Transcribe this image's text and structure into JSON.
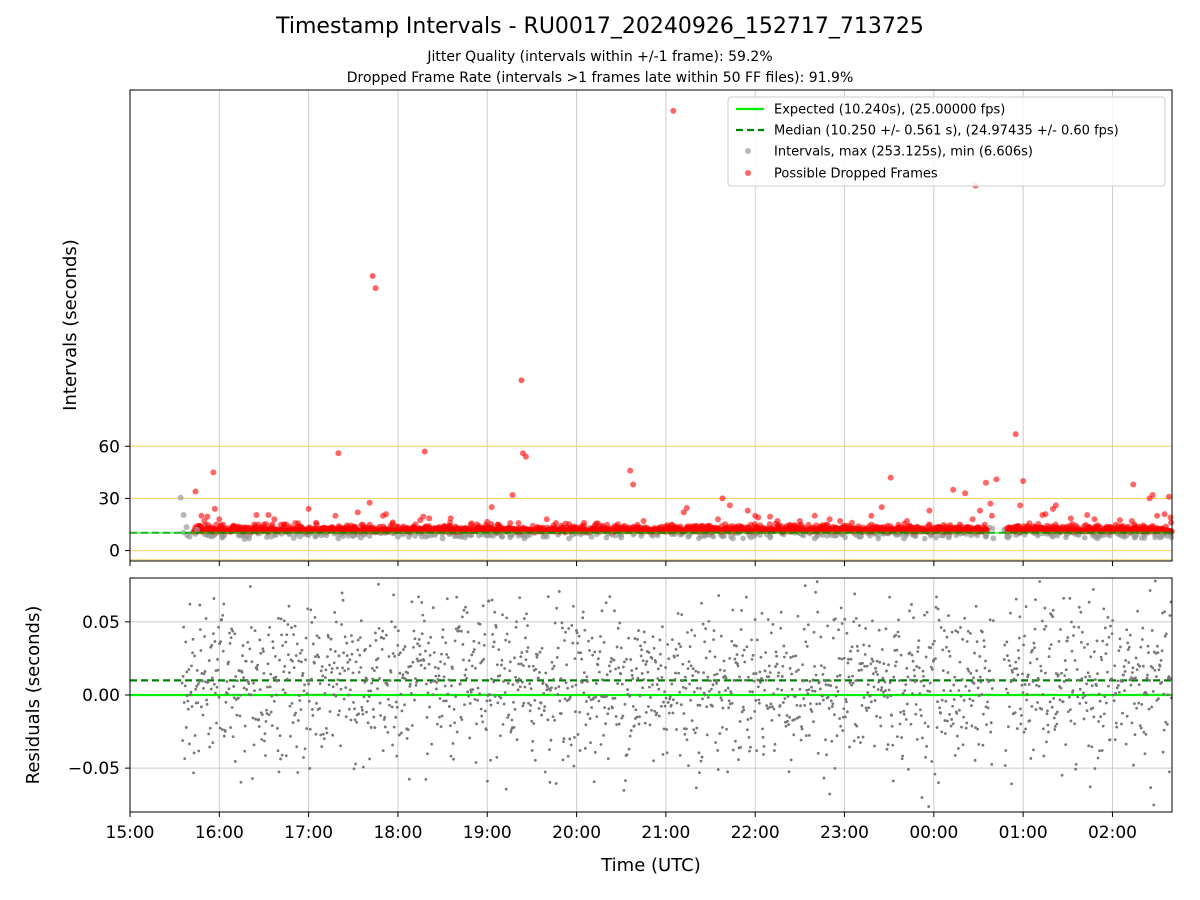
{
  "figure": {
    "title": "Timestamp Intervals - RU0017_20240926_152717_713725",
    "subtitle1": "Jitter Quality (intervals within +/-1 frame): 59.2%",
    "subtitle2": "Dropped Frame Rate (intervals >1 frames late within 50 FF files): 91.9%"
  },
  "colors": {
    "expected": "#00ee00",
    "median": "#008000",
    "intervals": "#999999",
    "dropped": "#ff0000",
    "residual_points": "#777777",
    "threshold_lines": "#f5d060",
    "grid": "#cccccc"
  },
  "chart_data": [
    {
      "type": "scatter",
      "panel": "intervals",
      "ylabel": "Intervals (seconds)",
      "yticks": [
        0,
        30,
        60
      ],
      "ylim": [
        -6,
        265
      ],
      "xlim": [
        "15:00",
        "02:40"
      ],
      "threshold_lines": [
        0,
        30,
        60
      ],
      "grid": "vertical",
      "legend_position": "top-right",
      "legend": [
        "Expected (10.240s), (25.00000 fps)",
        "Median (10.250 +/- 0.561 s), (24.97435 +/- 0.60 fps)",
        "Intervals, max (253.125s), min (6.606s)",
        "Possible Dropped Frames"
      ],
      "expected_interval": 10.24,
      "median_interval": 10.25,
      "series": [
        {
          "name": "Intervals, max (253.125s), min (6.606s)",
          "points": [
            [
              "15:34",
              30.5
            ],
            [
              "15:36",
              20.5
            ],
            [
              "15:38",
              13.5
            ],
            [
              "15:40",
              8.0
            ],
            [
              "15:45",
              12.0
            ],
            [
              "15:52",
              9.0
            ],
            [
              "16:02",
              7.5
            ],
            [
              "16:20",
              7.0
            ],
            [
              "16:35",
              8.0
            ],
            [
              "16:50",
              7.2
            ],
            [
              "17:05",
              8.5
            ],
            [
              "17:20",
              7.0
            ],
            [
              "17:35",
              7.5
            ],
            [
              "18:00",
              8.0
            ],
            [
              "18:30",
              7.0
            ],
            [
              "18:45",
              7.5
            ],
            [
              "19:10",
              8.0
            ],
            [
              "19:25",
              7.0
            ],
            [
              "19:40",
              8.0
            ],
            [
              "19:55",
              7.0
            ],
            [
              "20:10",
              8.0
            ],
            [
              "20:30",
              7.5
            ],
            [
              "21:15",
              8.0
            ],
            [
              "21:45",
              7.0
            ],
            [
              "22:10",
              7.5
            ],
            [
              "22:40",
              7.0
            ],
            [
              "23:10",
              8.0
            ],
            [
              "23:40",
              7.0
            ],
            [
              "00:10",
              7.5
            ],
            [
              "00:35",
              8.0
            ],
            [
              "00:40",
              7.0
            ],
            [
              "00:50",
              7.5
            ],
            [
              "01:20",
              8.0
            ],
            [
              "01:50",
              7.0
            ],
            [
              "02:15",
              7.5
            ]
          ]
        },
        {
          "name": "Possible Dropped Frames",
          "points": [
            [
              "15:44",
              34.0
            ],
            [
              "15:48",
              20.0
            ],
            [
              "15:50",
              17.0
            ],
            [
              "15:52",
              19.5
            ],
            [
              "15:56",
              45.0
            ],
            [
              "15:57",
              24.0
            ],
            [
              "15:58",
              15.0
            ],
            [
              "16:00",
              18.0
            ],
            [
              "16:25",
              20.5
            ],
            [
              "16:30",
              15.0
            ],
            [
              "16:33",
              20.5
            ],
            [
              "16:37",
              18.0
            ],
            [
              "16:45",
              15.0
            ],
            [
              "17:00",
              24.0
            ],
            [
              "17:05",
              16.0
            ],
            [
              "17:18",
              20.0
            ],
            [
              "17:20",
              56.0
            ],
            [
              "17:33",
              22.0
            ],
            [
              "17:41",
              27.5
            ],
            [
              "17:43",
              158.0
            ],
            [
              "17:45",
              151.0
            ],
            [
              "17:50",
              20.0
            ],
            [
              "17:52",
              21.0
            ],
            [
              "18:15",
              17.5
            ],
            [
              "18:17",
              19.5
            ],
            [
              "18:18",
              57.0
            ],
            [
              "18:21",
              18.5
            ],
            [
              "18:35",
              16.0
            ],
            [
              "19:00",
              16.5
            ],
            [
              "19:03",
              25.0
            ],
            [
              "19:17",
              32.0
            ],
            [
              "19:23",
              98.0
            ],
            [
              "19:24",
              56.0
            ],
            [
              "19:26",
              54.0
            ],
            [
              "19:40",
              18.0
            ],
            [
              "20:05",
              16.0
            ],
            [
              "20:36",
              46.0
            ],
            [
              "20:38",
              38.0
            ],
            [
              "20:45",
              17.0
            ],
            [
              "21:05",
              253.0
            ],
            [
              "21:12",
              22.0
            ],
            [
              "21:14",
              24.5
            ],
            [
              "21:35",
              18.0
            ],
            [
              "21:38",
              30.0
            ],
            [
              "21:43",
              26.0
            ],
            [
              "21:55",
              23.0
            ],
            [
              "22:00",
              20.0
            ],
            [
              "22:02",
              19.0
            ],
            [
              "22:10",
              19.5
            ],
            [
              "22:15",
              17.0
            ],
            [
              "22:30",
              17.0
            ],
            [
              "22:40",
              20.0
            ],
            [
              "22:50",
              18.0
            ],
            [
              "22:57",
              17.0
            ],
            [
              "23:05",
              16.0
            ],
            [
              "23:18",
              20.0
            ],
            [
              "23:25",
              25.0
            ],
            [
              "23:31",
              42.0
            ],
            [
              "23:42",
              17.0
            ],
            [
              "23:57",
              23.0
            ],
            [
              "00:13",
              35.0
            ],
            [
              "00:21",
              33.0
            ],
            [
              "00:26",
              18.0
            ],
            [
              "00:28",
              210.0
            ],
            [
              "00:31",
              23.0
            ],
            [
              "00:35",
              39.0
            ],
            [
              "00:38",
              27.0
            ],
            [
              "00:39",
              20.0
            ],
            [
              "00:42",
              41.0
            ],
            [
              "00:55",
              67.0
            ],
            [
              "00:58",
              26.0
            ],
            [
              "01:00",
              40.0
            ],
            [
              "01:13",
              20.5
            ],
            [
              "01:15",
              21.0
            ],
            [
              "01:20",
              24.0
            ],
            [
              "01:22",
              26.0
            ],
            [
              "01:32",
              18.5
            ],
            [
              "01:43",
              20.5
            ],
            [
              "01:48",
              18.0
            ],
            [
              "02:05",
              17.5
            ],
            [
              "02:13",
              17.0
            ],
            [
              "02:14",
              38.0
            ],
            [
              "02:25",
              30.0
            ],
            [
              "02:27",
              32.0
            ],
            [
              "02:30",
              20.0
            ],
            [
              "02:35",
              21.0
            ],
            [
              "02:38",
              31.0
            ],
            [
              "02:39",
              19.0
            ]
          ]
        }
      ]
    },
    {
      "type": "scatter",
      "panel": "residuals",
      "xlabel": "Time (UTC)",
      "ylabel": "Residuals (seconds)",
      "yticks": [
        0.05,
        0.0,
        -0.05
      ],
      "ytick_labels": [
        "0.05",
        "0.00",
        "−0.05"
      ],
      "ylim": [
        -0.08,
        0.08
      ],
      "xlim": [
        "15:00",
        "02:40"
      ],
      "xtick_labels": [
        "15:00",
        "16:00",
        "17:00",
        "18:00",
        "19:00",
        "20:00",
        "21:00",
        "22:00",
        "23:00",
        "00:00",
        "01:00",
        "02:00"
      ],
      "grid": "both",
      "expected_residual": 0.0,
      "median_residual": 0.01,
      "data_start": "15:35",
      "data_end": "02:40",
      "gap": [
        "00:40",
        "00:47"
      ]
    }
  ]
}
